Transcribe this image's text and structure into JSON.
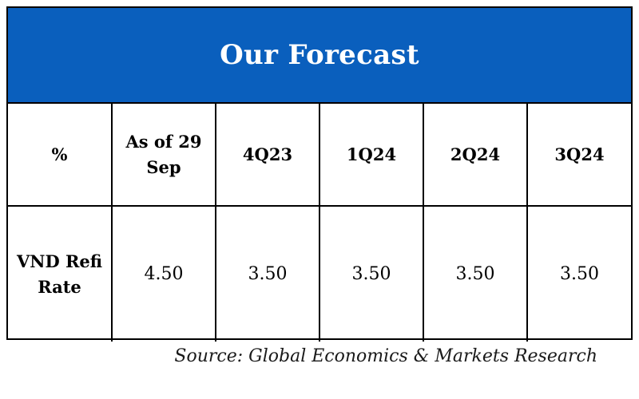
{
  "chart_data": {
    "type": "table",
    "title": "Our Forecast",
    "columns": [
      "%",
      "As of 29 Sep",
      "4Q23",
      "1Q24",
      "2Q24",
      "3Q24"
    ],
    "rows": [
      {
        "label": "VND Refi Rate",
        "values": [
          "4.50",
          "3.50",
          "3.50",
          "3.50",
          "3.50"
        ]
      }
    ],
    "source": "Source: Global Economics & Markets Research"
  },
  "colors": {
    "title_background": "#0a5fbd",
    "title_text": "#ffffff",
    "border": "#000000"
  }
}
